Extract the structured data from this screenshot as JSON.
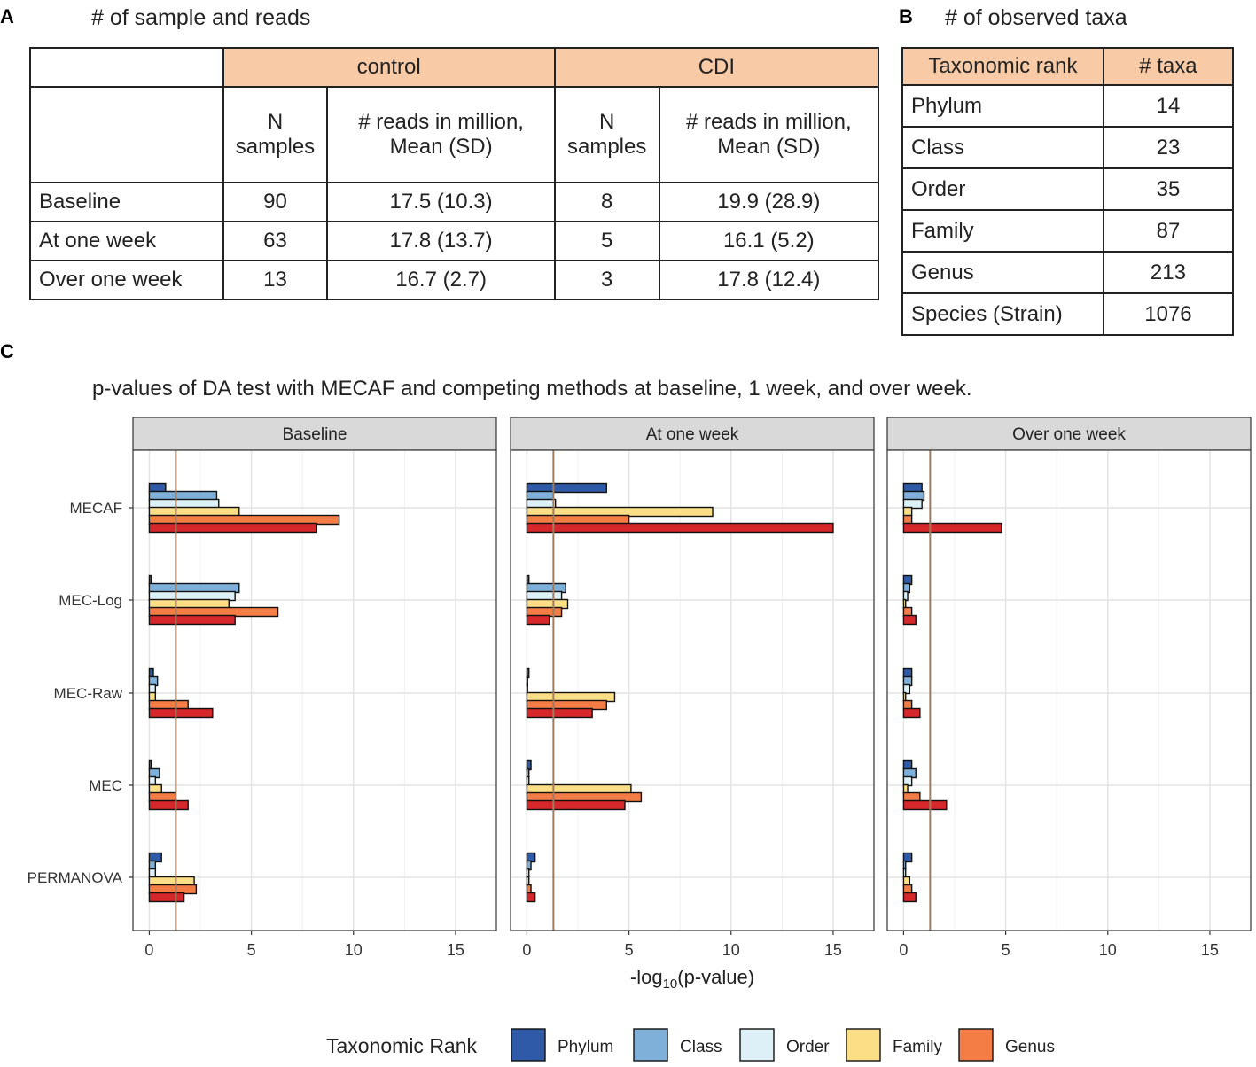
{
  "panel_a": {
    "letter": "A",
    "heading": "# of sample and reads",
    "group_headers": [
      "control",
      "CDI"
    ],
    "sub_headers": {
      "n_samples": [
        "N",
        "samples"
      ],
      "reads": [
        "# reads in million,",
        "Mean (SD)"
      ]
    },
    "rows": [
      {
        "label": "Baseline",
        "control_n": "90",
        "control_reads": "17.5 (10.3)",
        "cdi_n": "8",
        "cdi_reads": "19.9 (28.9)"
      },
      {
        "label": "At one week",
        "control_n": "63",
        "control_reads": "17.8 (13.7)",
        "cdi_n": "5",
        "cdi_reads": "16.1   (5.2)"
      },
      {
        "label": "Over one week",
        "control_n": "13",
        "control_reads": "16.7   (2.7)",
        "cdi_n": "3",
        "cdi_reads": "17.8 (12.4)"
      }
    ]
  },
  "panel_b": {
    "letter": "B",
    "heading": "# of observed taxa",
    "headers": [
      "Taxonomic rank",
      "# taxa"
    ],
    "rows": [
      {
        "rank": "Phylum",
        "count": "14"
      },
      {
        "rank": "Class",
        "count": "23"
      },
      {
        "rank": "Order",
        "count": "35"
      },
      {
        "rank": "Family",
        "count": "87"
      },
      {
        "rank": "Genus",
        "count": "213"
      },
      {
        "rank": "Species (Strain)",
        "count": "1076"
      }
    ]
  },
  "panel_c": {
    "letter": "C",
    "title": "p-values  of DA test with MECAF and competing methods at baseline, 1 week, and over week."
  },
  "colors": {
    "Phylum": "#2f5aa8",
    "Class": "#7fb0d9",
    "Order": "#ddf0f7",
    "Family": "#fcde86",
    "Genus": "#f37d44",
    "Species": "#d6272b",
    "threshold": "#a07b5e",
    "strip": "#d9d9d9",
    "header_fill": "#f8cba6"
  },
  "chart_data": {
    "type": "bar",
    "orientation": "horizontal",
    "xlabel_prefix": "-log",
    "xlabel_sub": "10",
    "xlabel_suffix": "(p-value)",
    "xlim": [
      -0.8,
      17
    ],
    "xticks": [
      0,
      5,
      10,
      15
    ],
    "xtick_labels": [
      "0",
      "5",
      "10",
      "15"
    ],
    "threshold": 1.3,
    "methods": [
      "MECAF",
      "MEC-Log",
      "MEC-Raw",
      "MEC",
      "PERMANOVA"
    ],
    "ranks": [
      "Phylum",
      "Class",
      "Order",
      "Family",
      "Genus",
      "Species"
    ],
    "legend_title": "Taxonomic Rank",
    "legend_entries": [
      "Phylum",
      "Class",
      "Order",
      "Family",
      "Genus"
    ],
    "legend_position": "bottom",
    "facets": [
      {
        "title": "Baseline",
        "values": {
          "MECAF": [
            0.8,
            3.3,
            3.4,
            4.4,
            9.3,
            8.2
          ],
          "MEC-Log": [
            0.1,
            4.4,
            4.2,
            3.9,
            6.3,
            4.2
          ],
          "MEC-Raw": [
            0.2,
            0.4,
            0.3,
            0.3,
            1.9,
            3.1
          ],
          "MEC": [
            0.1,
            0.5,
            0.3,
            0.6,
            1.3,
            1.9
          ],
          "PERMANOVA": [
            0.6,
            0.3,
            0.3,
            2.2,
            2.3,
            1.7
          ]
        }
      },
      {
        "title": "At one week",
        "values": {
          "MECAF": [
            3.9,
            1.3,
            1.4,
            9.1,
            5.0,
            15.0
          ],
          "MEC-Log": [
            0.1,
            1.9,
            1.7,
            2.0,
            1.7,
            1.1
          ],
          "MEC-Raw": [
            0.1,
            0.0,
            0.0,
            4.3,
            3.9,
            3.2
          ],
          "MEC": [
            0.2,
            0.1,
            0.1,
            5.1,
            5.6,
            4.8
          ],
          "PERMANOVA": [
            0.4,
            0.2,
            0.1,
            0.1,
            0.2,
            0.4
          ]
        }
      },
      {
        "title": "Over one week",
        "values": {
          "MECAF": [
            0.9,
            1.0,
            0.9,
            0.4,
            0.4,
            4.8
          ],
          "MEC-Log": [
            0.4,
            0.3,
            0.2,
            0.1,
            0.4,
            0.6
          ],
          "MEC-Raw": [
            0.4,
            0.4,
            0.3,
            0.1,
            0.4,
            0.8
          ],
          "MEC": [
            0.4,
            0.6,
            0.4,
            0.2,
            0.8,
            2.1
          ],
          "PERMANOVA": [
            0.4,
            0.1,
            0.1,
            0.3,
            0.4,
            0.6
          ]
        }
      }
    ]
  }
}
